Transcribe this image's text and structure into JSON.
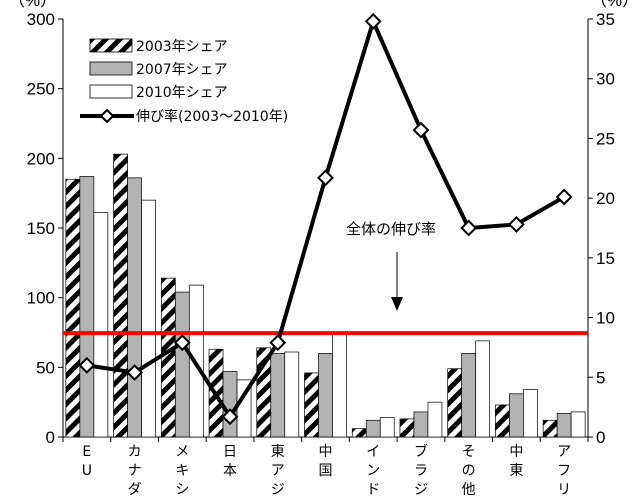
{
  "chart_data": {
    "type": "bar",
    "unit_left": "（%）",
    "unit_right": "（%）",
    "ylim_left": [
      0,
      300
    ],
    "yticks_left": [
      0,
      50,
      100,
      150,
      200,
      250,
      300
    ],
    "ylim_right": [
      0,
      35
    ],
    "yticks_right": [
      0,
      5,
      10,
      15,
      20,
      25,
      30,
      35
    ],
    "categories": [
      [
        "E",
        "U"
      ],
      [
        "カ",
        "ナ",
        "ダ"
      ],
      [
        "メ",
        "キ",
        "シ"
      ],
      [
        "日",
        "本"
      ],
      [
        "東",
        "ア",
        "ジ"
      ],
      [
        "中",
        "国"
      ],
      [
        "イ",
        "ン",
        "ド"
      ],
      [
        "ブ",
        "ラ",
        "ジ"
      ],
      [
        "そ",
        "の",
        "他"
      ],
      [
        "中",
        "東"
      ],
      [
        "ア",
        "フ",
        "リ"
      ]
    ],
    "series": [
      {
        "name": "2003年シェア",
        "axis": "left",
        "style": "hatched",
        "values": [
          185,
          203,
          114,
          63,
          64,
          46,
          6,
          13,
          49,
          23,
          12
        ]
      },
      {
        "name": "2007年シェア",
        "axis": "left",
        "style": "gray",
        "values": [
          187,
          186,
          104,
          47,
          60,
          60,
          12,
          18,
          60,
          31,
          17
        ]
      },
      {
        "name": "2010年シェア",
        "axis": "left",
        "style": "white",
        "values": [
          161,
          170,
          109,
          41,
          61,
          75,
          14,
          25,
          69,
          34,
          18
        ]
      },
      {
        "name": "伸び率(2003～2010年)",
        "axis": "right",
        "type": "line",
        "values": [
          6.0,
          5.4,
          7.9,
          1.7,
          7.9,
          21.7,
          34.8,
          25.7,
          17.5,
          17.8,
          20.1
        ]
      }
    ],
    "reference_line": {
      "axis": "right",
      "value": 8.7,
      "color": "#ff0000"
    },
    "annotation": "全体の伸び率",
    "grid": false,
    "legend_position": "top-left"
  }
}
